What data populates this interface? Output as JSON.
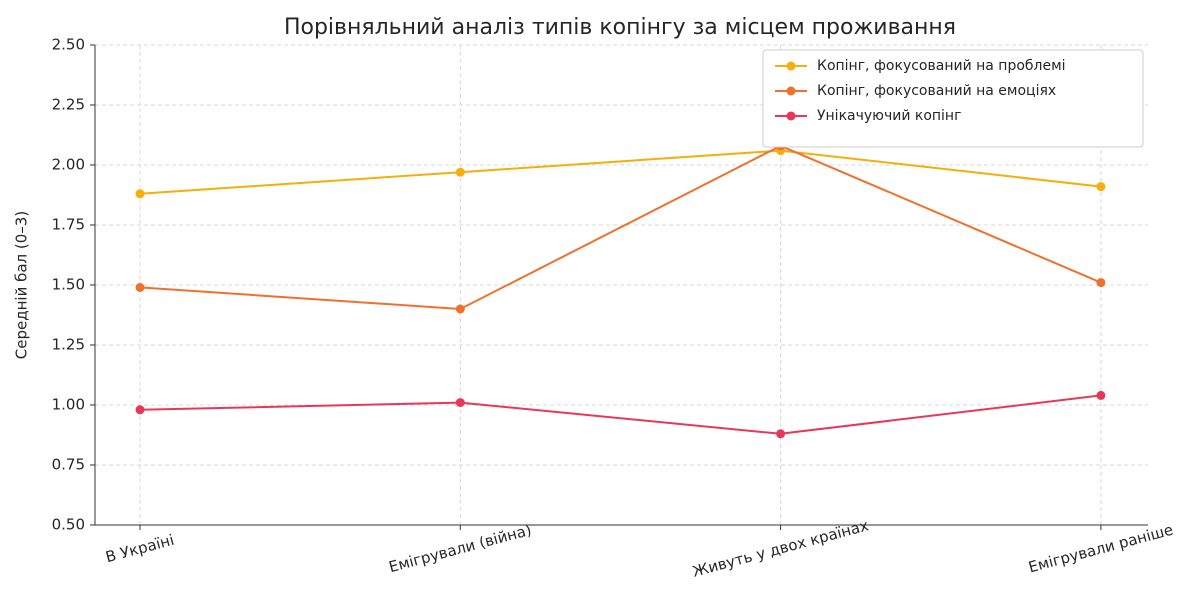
{
  "chart_data": {
    "type": "line",
    "title": "Порівняльний аналіз типів копінгу за місцем проживання",
    "y_label": "Середній бал (0–3)",
    "categories": [
      "В Україні",
      "Емігрували (війна)",
      "Живуть у двох країнах",
      "Емігрували раніше"
    ],
    "series": [
      {
        "name": "Копінг, фокусований на проблемі",
        "color": "#f7ad0b",
        "values": [
          1.88,
          1.97,
          2.06,
          1.91
        ]
      },
      {
        "name": "Копінг, фокусований на емоціях",
        "color": "#f0702e",
        "values": [
          1.49,
          1.4,
          2.08,
          1.51
        ]
      },
      {
        "name": "Унікачуючий копінг",
        "color": "#e8375a",
        "values": [
          0.98,
          1.01,
          0.88,
          1.04
        ]
      }
    ],
    "ylim": [
      0.5,
      2.5
    ],
    "yticks": [
      {
        "value": 0.5,
        "label": "0.50"
      },
      {
        "value": 0.75,
        "label": "0.75"
      },
      {
        "value": 1.0,
        "label": "1.00"
      },
      {
        "value": 1.25,
        "label": "1.25"
      },
      {
        "value": 1.5,
        "label": "1.50"
      },
      {
        "value": 1.75,
        "label": "1.75"
      },
      {
        "value": 2.0,
        "label": "2.00"
      },
      {
        "value": 2.25,
        "label": "2.25"
      },
      {
        "value": 2.5,
        "label": "2.50"
      }
    ],
    "grid": true,
    "legend": "upper right"
  }
}
